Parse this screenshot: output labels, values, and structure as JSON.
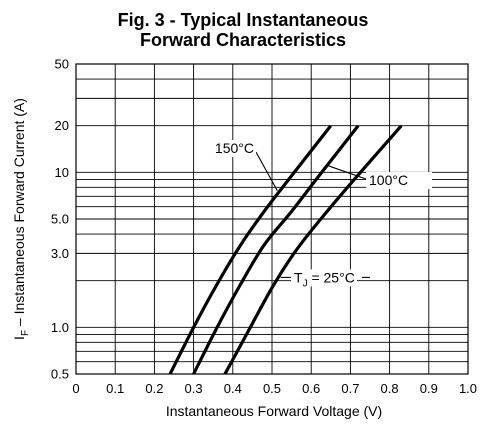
{
  "chart_data": {
    "type": "line",
    "title_line1": "Fig. 3 - Typical Instantaneous",
    "title_line2": "Forward Characteristics",
    "xlabel": "Instantaneous Forward Voltage (V)",
    "ylabel": {
      "prefix": "I",
      "subscript": "F",
      "rest": " – Instantaneous Forward Current (A)"
    },
    "xlim": [
      0,
      1.0
    ],
    "ylim": [
      0.5,
      50
    ],
    "yscale": "log",
    "grid": true,
    "x_ticks": [
      0,
      0.1,
      0.2,
      0.3,
      0.4,
      0.5,
      0.6,
      0.7,
      0.8,
      0.9,
      1.0
    ],
    "x_tick_labels": [
      "0",
      "0.1",
      "0.2",
      "0.3",
      "0.4",
      "0.5",
      "0.6",
      "0.7",
      "0.8",
      "0.9",
      "1.0"
    ],
    "y_ticks": [
      0.5,
      1.0,
      3.0,
      5.0,
      10,
      20,
      50
    ],
    "y_tick_labels": [
      "0.5",
      "1.0",
      "3.0",
      "5.0",
      "10",
      "20",
      "50"
    ],
    "y_minor_gridlines": [
      0.5,
      0.6,
      0.7,
      0.8,
      0.9,
      1,
      2,
      3,
      4,
      5,
      6,
      7,
      8,
      9,
      10,
      20,
      30,
      40,
      50
    ],
    "series": [
      {
        "name": "150°C",
        "x": [
          0.24,
          0.3,
          0.36,
          0.42,
          0.48,
          0.55,
          0.65
        ],
        "y": [
          0.5,
          1.0,
          1.9,
          3.4,
          5.6,
          9.5,
          20
        ]
      },
      {
        "name": "100°C",
        "x": [
          0.3,
          0.36,
          0.42,
          0.48,
          0.55,
          0.62,
          0.72
        ],
        "y": [
          0.5,
          1.0,
          1.9,
          3.4,
          5.6,
          9.5,
          20
        ]
      },
      {
        "name": "T_J = 25°C",
        "x": [
          0.38,
          0.44,
          0.5,
          0.56,
          0.63,
          0.71,
          0.83
        ],
        "y": [
          0.5,
          0.95,
          1.8,
          3.1,
          5.2,
          9.0,
          20
        ]
      }
    ],
    "annotations": [
      {
        "text_main": "150°C",
        "series": 0
      },
      {
        "text_main": "100°C",
        "series": 1
      },
      {
        "text_main": "T",
        "text_sub": "J",
        "text_rest": " = 25°C",
        "series": 2
      }
    ]
  }
}
